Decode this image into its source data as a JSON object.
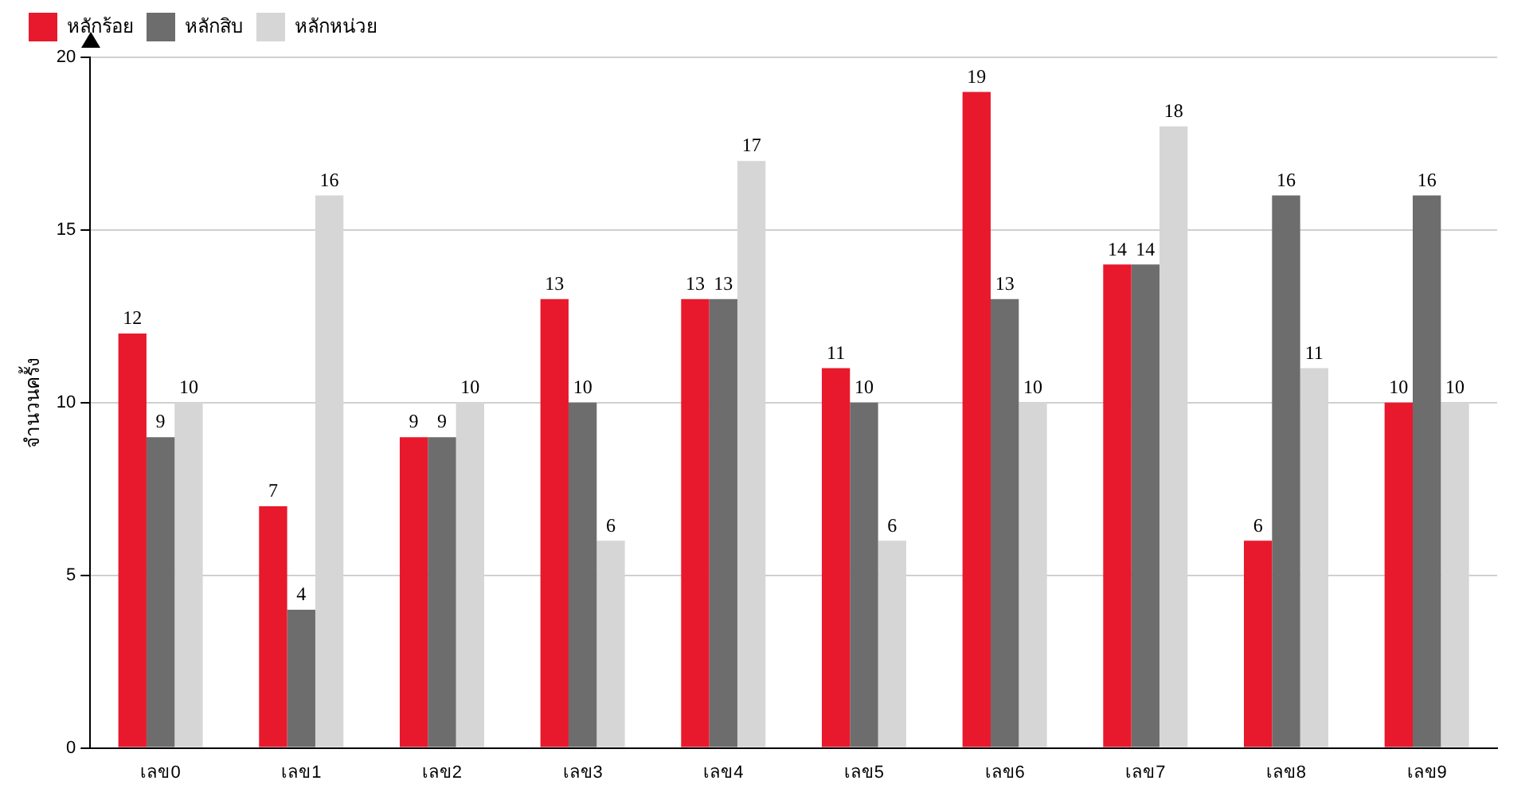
{
  "chart_data": {
    "type": "bar",
    "ylabel": "จำนวนครั้ง",
    "categories": [
      "เลข0",
      "เลข1",
      "เลข2",
      "เลข3",
      "เลข4",
      "เลข5",
      "เลข6",
      "เลข7",
      "เลข8",
      "เลข9"
    ],
    "series": [
      {
        "name": "หลักร้อย",
        "color": "#e8192c",
        "values": [
          12,
          7,
          9,
          13,
          13,
          11,
          19,
          14,
          6,
          10
        ]
      },
      {
        "name": "หลักสิบ",
        "color": "#6d6d6d",
        "values": [
          9,
          4,
          9,
          10,
          13,
          10,
          13,
          14,
          16,
          16
        ]
      },
      {
        "name": "หลักหน่วย",
        "color": "#d6d6d6",
        "values": [
          10,
          16,
          10,
          6,
          17,
          6,
          10,
          18,
          11,
          10
        ]
      }
    ],
    "ylim": [
      0,
      20
    ],
    "yticks": [
      0,
      5,
      10,
      15,
      20
    ],
    "grid": "y",
    "legend": "top left",
    "data_labels": true
  }
}
